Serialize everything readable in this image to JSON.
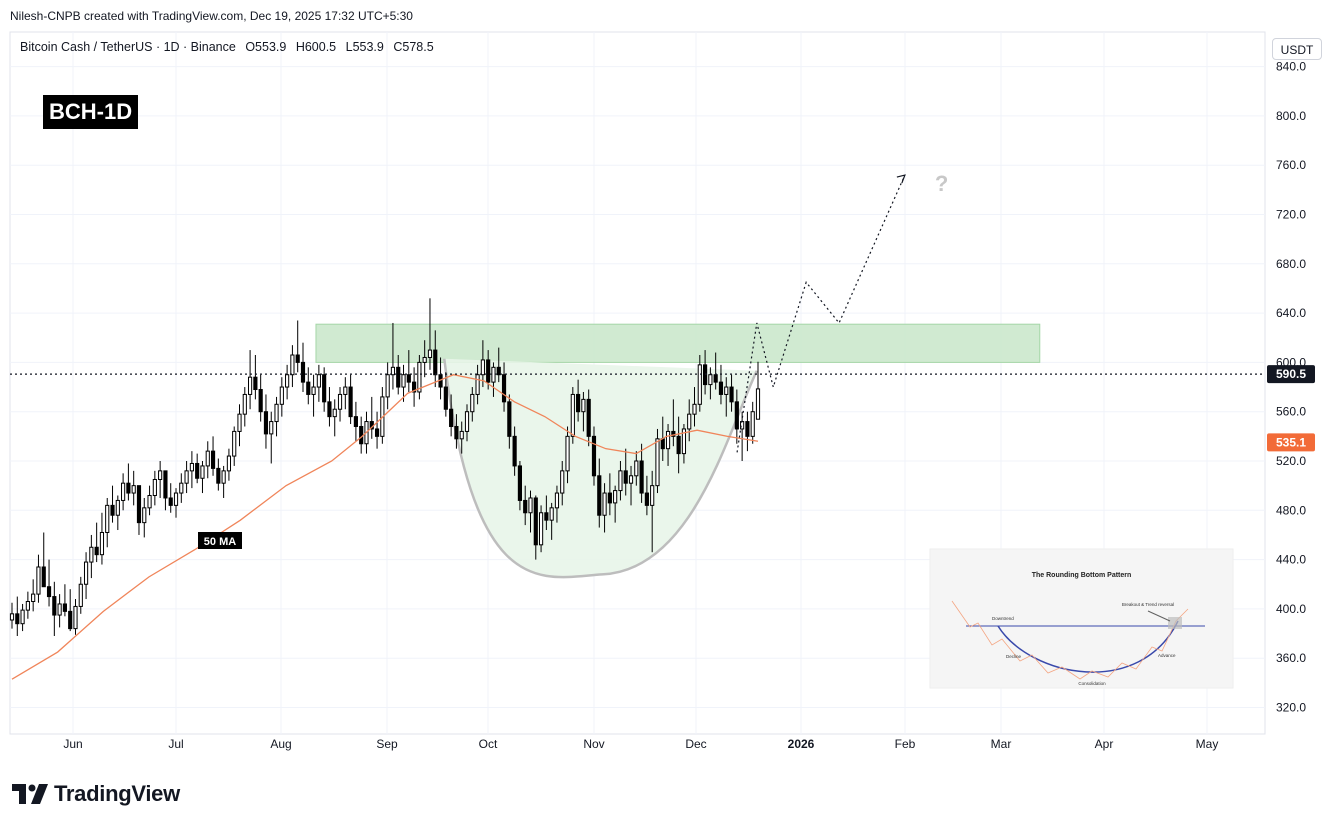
{
  "header": {
    "created": "Nilesh-CNPB created with TradingView.com, Dec 19, 2025 17:32 UTC+5:30",
    "symbol_line": "Bitcoin Cash / TetherUS · 1D · Binance",
    "open": "O553.9",
    "high": "H600.5",
    "low": "L553.9",
    "close": "C578.5",
    "currency_button": "USDT"
  },
  "badge": "BCH-1D",
  "ma_label": "50 MA",
  "question_mark": "?",
  "brand": "TradingView",
  "inset": {
    "title": "The Rounding Bottom Pattern",
    "labels": [
      "Downtrend",
      "Breakout & Trend reversal",
      "Decline",
      "Advance",
      "Consolidation"
    ]
  },
  "chart_data": {
    "type": "candlestick",
    "symbol": "BCH/USDT",
    "timeframe": "1D",
    "y_ticks": [
      320.0,
      360.0,
      400.0,
      440.0,
      480.0,
      520.0,
      560.0,
      600.0,
      640.0,
      680.0,
      720.0,
      760.0,
      800.0,
      840.0
    ],
    "x_ticks": [
      "Jun",
      "Jul",
      "Aug",
      "Sep",
      "Oct",
      "Nov",
      "Dec",
      "2026",
      "Feb",
      "Mar",
      "Apr",
      "May"
    ],
    "ylim": [
      306,
      850
    ],
    "last_price": "590.5",
    "ma_value": "535.1",
    "colors": {
      "up": "#ffffff",
      "down": "#000000",
      "ma": "#f0855a",
      "zone": "#c8e6c9",
      "cup": "#e8f5e9",
      "last_price_tag": "#131722",
      "ma_tag": "#f26b38"
    },
    "resistance_zone": {
      "low": 600,
      "high": 631,
      "start": "2025-08-10",
      "end": "2026-03-18"
    },
    "rounding_bottom": {
      "left": "2025-09-18",
      "bottom": "2025-11-05",
      "bottom_price": 428,
      "right": "2025-12-22",
      "top_price": 590
    },
    "projection": [
      {
        "date": "2025-12-16",
        "price": 527
      },
      {
        "date": "2025-12-22",
        "price": 632
      },
      {
        "date": "2025-12-27",
        "price": 580
      },
      {
        "date": "2026-01-06",
        "price": 665
      },
      {
        "date": "2026-01-16",
        "price": 632
      },
      {
        "date": "2026-02-05",
        "price": 752
      }
    ],
    "series": [
      {
        "name": "50 MA",
        "points": [
          [
            0,
            343
          ],
          [
            30,
            365
          ],
          [
            60,
            398
          ],
          [
            90,
            426
          ],
          [
            120,
            448
          ],
          [
            150,
            472
          ],
          [
            180,
            500
          ],
          [
            210,
            520
          ],
          [
            230,
            540
          ],
          [
            260,
            575
          ],
          [
            290,
            590
          ],
          [
            310,
            585
          ],
          [
            330,
            568
          ],
          [
            350,
            556
          ],
          [
            370,
            540
          ],
          [
            390,
            530
          ],
          [
            410,
            526
          ],
          [
            430,
            540
          ],
          [
            450,
            545
          ],
          [
            470,
            540
          ],
          [
            490,
            536
          ]
        ]
      }
    ],
    "candles": [
      [
        391,
        405,
        384,
        396
      ],
      [
        396,
        410,
        378,
        388
      ],
      [
        388,
        404,
        382,
        399
      ],
      [
        399,
        414,
        392,
        406
      ],
      [
        406,
        424,
        398,
        412
      ],
      [
        412,
        444,
        405,
        434
      ],
      [
        434,
        462,
        420,
        418
      ],
      [
        418,
        440,
        402,
        410
      ],
      [
        410,
        422,
        378,
        395
      ],
      [
        395,
        412,
        385,
        404
      ],
      [
        404,
        420,
        394,
        398
      ],
      [
        398,
        416,
        382,
        384
      ],
      [
        384,
        408,
        379,
        402
      ],
      [
        402,
        426,
        396,
        420
      ],
      [
        420,
        446,
        408,
        438
      ],
      [
        438,
        460,
        425,
        450
      ],
      [
        450,
        470,
        438,
        444
      ],
      [
        444,
        478,
        436,
        462
      ],
      [
        462,
        490,
        450,
        484
      ],
      [
        484,
        500,
        470,
        476
      ],
      [
        476,
        492,
        464,
        488
      ],
      [
        488,
        510,
        480,
        502
      ],
      [
        502,
        518,
        488,
        494
      ],
      [
        494,
        512,
        484,
        500
      ],
      [
        500,
        498,
        460,
        470
      ],
      [
        470,
        490,
        458,
        482
      ],
      [
        482,
        500,
        476,
        492
      ],
      [
        492,
        512,
        484,
        505
      ],
      [
        505,
        520,
        490,
        512
      ],
      [
        512,
        508,
        480,
        490
      ],
      [
        490,
        502,
        478,
        484
      ],
      [
        484,
        498,
        474,
        494
      ],
      [
        494,
        510,
        486,
        502
      ],
      [
        502,
        520,
        494,
        512
      ],
      [
        512,
        528,
        498,
        518
      ],
      [
        518,
        526,
        502,
        506
      ],
      [
        506,
        520,
        494,
        516
      ],
      [
        516,
        536,
        506,
        528
      ],
      [
        528,
        540,
        508,
        514
      ],
      [
        514,
        522,
        496,
        502
      ],
      [
        502,
        516,
        490,
        512
      ],
      [
        512,
        530,
        504,
        524
      ],
      [
        524,
        548,
        516,
        544
      ],
      [
        544,
        566,
        532,
        558
      ],
      [
        558,
        580,
        548,
        574
      ],
      [
        574,
        610,
        562,
        588
      ],
      [
        588,
        606,
        570,
        578
      ],
      [
        578,
        590,
        552,
        560
      ],
      [
        560,
        574,
        530,
        542
      ],
      [
        542,
        560,
        518,
        552
      ],
      [
        552,
        572,
        540,
        566
      ],
      [
        566,
        588,
        556,
        580
      ],
      [
        580,
        598,
        570,
        590
      ],
      [
        590,
        614,
        580,
        606
      ],
      [
        606,
        634,
        592,
        600
      ],
      [
        600,
        616,
        576,
        584
      ],
      [
        584,
        596,
        566,
        574
      ],
      [
        574,
        590,
        556,
        580
      ],
      [
        580,
        598,
        568,
        590
      ],
      [
        590,
        596,
        560,
        568
      ],
      [
        568,
        580,
        548,
        556
      ],
      [
        556,
        570,
        540,
        562
      ],
      [
        562,
        580,
        552,
        574
      ],
      [
        574,
        588,
        562,
        580
      ],
      [
        580,
        590,
        550,
        556
      ],
      [
        556,
        568,
        536,
        548
      ],
      [
        548,
        556,
        526,
        534
      ],
      [
        534,
        560,
        526,
        552
      ],
      [
        552,
        572,
        538,
        546
      ],
      [
        546,
        560,
        530,
        540
      ],
      [
        540,
        580,
        534,
        572
      ],
      [
        572,
        600,
        562,
        590
      ],
      [
        590,
        632,
        578,
        596
      ],
      [
        596,
        606,
        574,
        580
      ],
      [
        580,
        598,
        568,
        590
      ],
      [
        590,
        610,
        576,
        584
      ],
      [
        584,
        596,
        564,
        576
      ],
      [
        576,
        606,
        570,
        600
      ],
      [
        600,
        618,
        588,
        604
      ],
      [
        604,
        652,
        594,
        610
      ],
      [
        610,
        626,
        580,
        590
      ],
      [
        590,
        604,
        570,
        580
      ],
      [
        580,
        592,
        556,
        562
      ],
      [
        562,
        574,
        540,
        548
      ],
      [
        548,
        558,
        530,
        538
      ],
      [
        538,
        552,
        526,
        544
      ],
      [
        544,
        566,
        536,
        560
      ],
      [
        560,
        580,
        552,
        574
      ],
      [
        574,
        598,
        566,
        590
      ],
      [
        590,
        618,
        580,
        602
      ],
      [
        602,
        610,
        578,
        584
      ],
      [
        584,
        600,
        572,
        596
      ],
      [
        596,
        612,
        584,
        590
      ],
      [
        590,
        600,
        560,
        568
      ],
      [
        568,
        574,
        530,
        540
      ],
      [
        540,
        548,
        508,
        516
      ],
      [
        516,
        520,
        480,
        488
      ],
      [
        488,
        500,
        468,
        478
      ],
      [
        478,
        496,
        462,
        490
      ],
      [
        490,
        492,
        440,
        452
      ],
      [
        452,
        484,
        446,
        478
      ],
      [
        478,
        492,
        464,
        472
      ],
      [
        472,
        486,
        456,
        482
      ],
      [
        482,
        500,
        470,
        494
      ],
      [
        494,
        520,
        484,
        512
      ],
      [
        512,
        548,
        502,
        540
      ],
      [
        540,
        580,
        534,
        574
      ],
      [
        574,
        586,
        552,
        560
      ],
      [
        560,
        576,
        544,
        570
      ],
      [
        570,
        578,
        532,
        540
      ],
      [
        540,
        548,
        500,
        508
      ],
      [
        508,
        522,
        466,
        476
      ],
      [
        476,
        502,
        462,
        494
      ],
      [
        494,
        510,
        476,
        486
      ],
      [
        486,
        500,
        470,
        496
      ],
      [
        496,
        520,
        488,
        512
      ],
      [
        512,
        530,
        492,
        502
      ],
      [
        502,
        516,
        484,
        508
      ],
      [
        508,
        528,
        500,
        520
      ],
      [
        520,
        534,
        486,
        494
      ],
      [
        494,
        508,
        476,
        484
      ],
      [
        484,
        512,
        446,
        500
      ],
      [
        500,
        546,
        494,
        538
      ],
      [
        538,
        556,
        520,
        530
      ],
      [
        530,
        550,
        516,
        544
      ],
      [
        544,
        570,
        532,
        540
      ],
      [
        540,
        556,
        510,
        526
      ],
      [
        526,
        550,
        518,
        546
      ],
      [
        546,
        570,
        536,
        558
      ],
      [
        558,
        580,
        548,
        566
      ],
      [
        566,
        606,
        560,
        598
      ],
      [
        598,
        610,
        574,
        582
      ],
      [
        582,
        596,
        570,
        590
      ],
      [
        590,
        608,
        578,
        584
      ],
      [
        584,
        598,
        566,
        574
      ],
      [
        574,
        588,
        556,
        580
      ],
      [
        580,
        590,
        560,
        568
      ],
      [
        568,
        578,
        534,
        546
      ],
      [
        546,
        560,
        520,
        552
      ],
      [
        552,
        560,
        528,
        540
      ],
      [
        540,
        568,
        534,
        560
      ],
      [
        553.9,
        600.5,
        553.9,
        578.5
      ]
    ]
  }
}
